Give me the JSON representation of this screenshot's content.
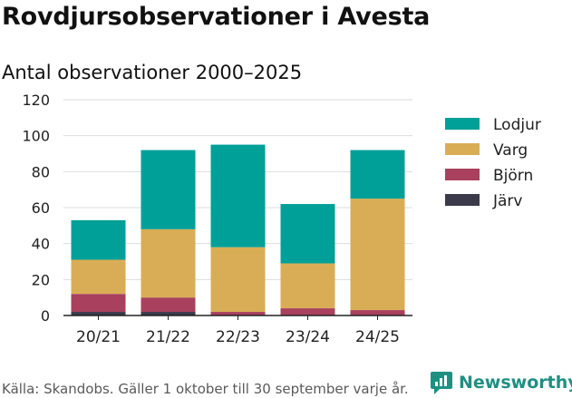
{
  "header": {
    "title": "Rovdjursobservationer i Avesta"
  },
  "chart_data": {
    "type": "bar",
    "stacked": true,
    "title": "Rovdjursobservationer i Avesta",
    "subtitle": "Antal observationer 2000–2025",
    "xlabel": "",
    "ylabel": "",
    "categories": [
      "20/21",
      "21/22",
      "22/23",
      "23/24",
      "24/25"
    ],
    "ylim": [
      0,
      120
    ],
    "yticks": [
      0,
      20,
      40,
      60,
      80,
      100,
      120
    ],
    "grid": true,
    "legend_position": "right",
    "series": [
      {
        "name": "Järv",
        "color": "#3a3a4a",
        "values": [
          2,
          2,
          0,
          0,
          0
        ]
      },
      {
        "name": "Björn",
        "color": "#a8405e",
        "values": [
          10,
          8,
          2,
          4,
          3
        ]
      },
      {
        "name": "Varg",
        "color": "#d9ad56",
        "values": [
          19,
          38,
          36,
          25,
          62
        ]
      },
      {
        "name": "Lodjur",
        "color": "#00a098",
        "values": [
          22,
          44,
          57,
          33,
          27
        ]
      }
    ],
    "legend_order": [
      "Lodjur",
      "Varg",
      "Björn",
      "Järv"
    ]
  },
  "footer": {
    "source": "Källa: Skandobs. Gäller 1 oktober till 30 september varje år.",
    "brand": "Newsworthy"
  },
  "colors": {
    "brand": "#1f8f82",
    "grid": "#dddddd",
    "axis": "#222222"
  }
}
